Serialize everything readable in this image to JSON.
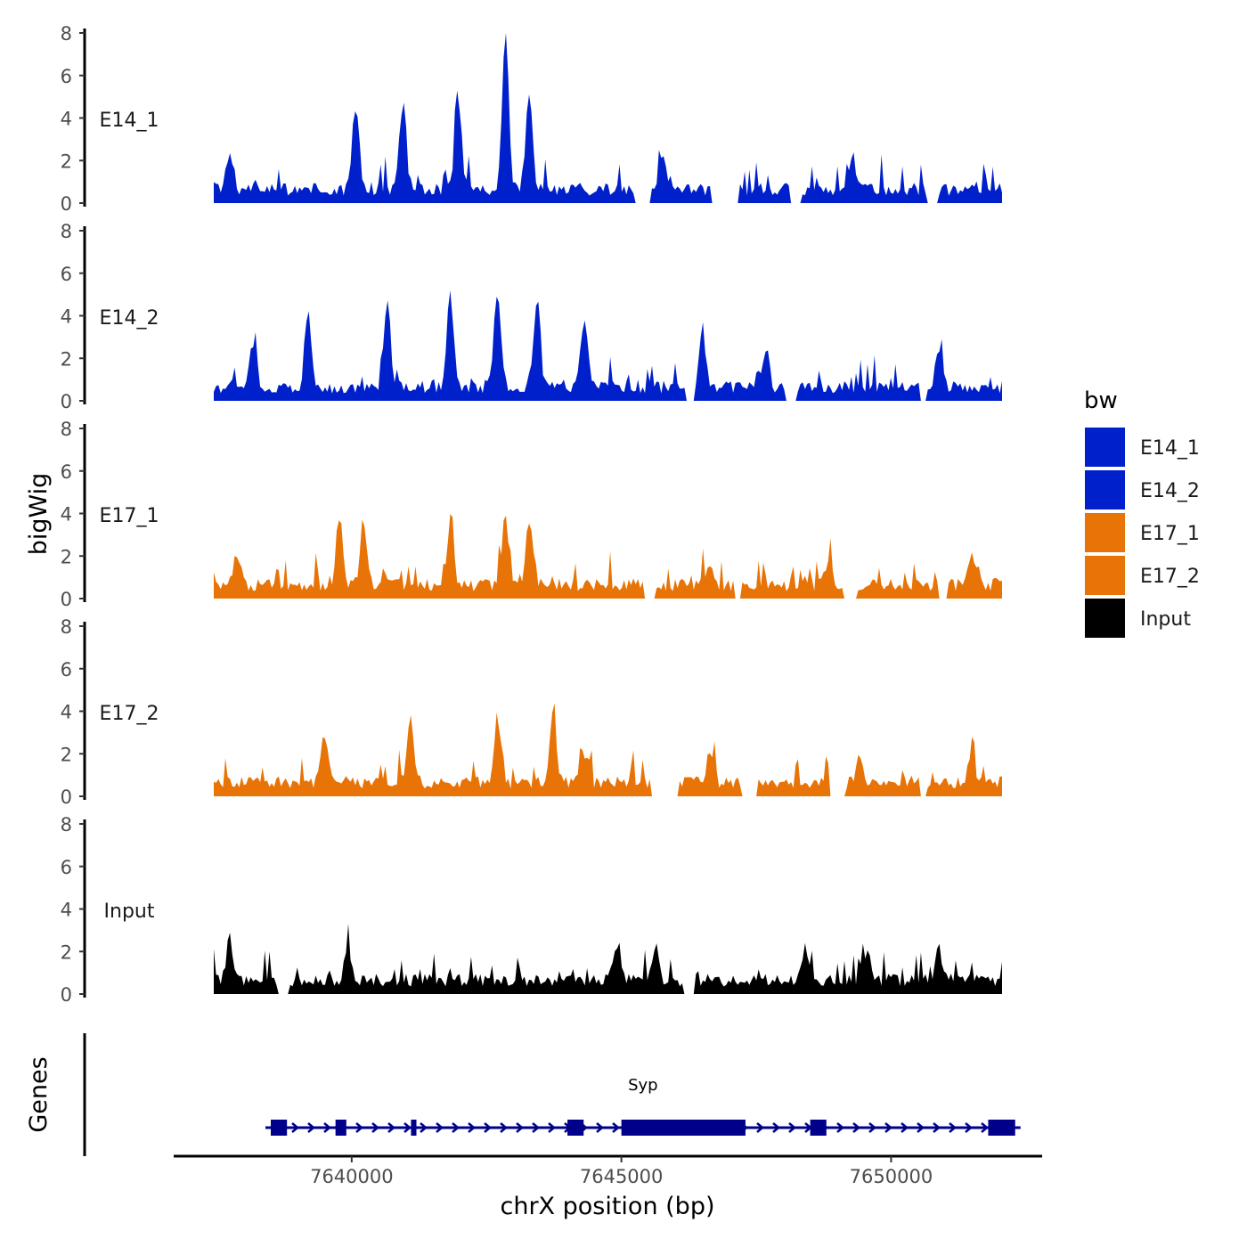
{
  "chart_data": {
    "type": "area",
    "panels": [
      {
        "name": "E14_1",
        "color": "#0020CC"
      },
      {
        "name": "E14_2",
        "color": "#0020CC"
      },
      {
        "name": "E17_1",
        "color": "#E87306"
      },
      {
        "name": "E17_2",
        "color": "#E87306"
      },
      {
        "name": "Input",
        "color": "#000000"
      }
    ],
    "ylabel": "bigWig",
    "ylim": [
      0,
      8
    ],
    "yticks": [
      "0",
      "2",
      "4",
      "6",
      "8"
    ],
    "xlabel": "chrX position (bp)",
    "xlim": [
      7636700,
      7652800
    ],
    "xticks": [
      7640000,
      7645000,
      7650000
    ],
    "xtick_labels": [
      "7640000",
      "7645000",
      "7650000"
    ],
    "genes_label": "Genes",
    "gene": {
      "name": "Syp",
      "color": "#00008B",
      "start": 7638500,
      "end": 7652300,
      "exons": [
        [
          7638500,
          7638800
        ],
        [
          7639700,
          7639900
        ],
        [
          7641100,
          7641200
        ],
        [
          7644000,
          7644300
        ],
        [
          7645000,
          7647300
        ],
        [
          7648500,
          7648800
        ],
        [
          7651800,
          7652300
        ]
      ]
    },
    "legend": {
      "title": "bw",
      "entries": [
        {
          "label": "E14_1",
          "color": "#0020CC"
        },
        {
          "label": "E14_2",
          "color": "#0020CC"
        },
        {
          "label": "E17_1",
          "color": "#E87306"
        },
        {
          "label": "E17_2",
          "color": "#E87306"
        },
        {
          "label": "Input",
          "color": "#000000"
        }
      ]
    }
  }
}
